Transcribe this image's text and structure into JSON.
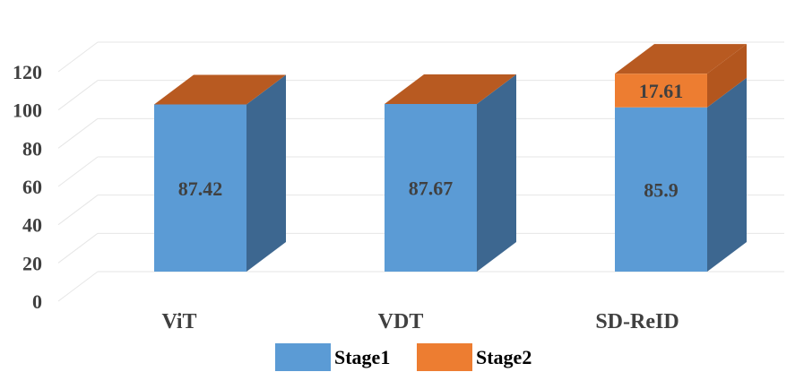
{
  "chart_data": {
    "type": "bar",
    "stacked": true,
    "style": "3d",
    "categories": [
      "ViT",
      "VDT",
      "SD-ReID"
    ],
    "series": [
      {
        "name": "Stage1",
        "values": [
          87.42,
          87.67,
          85.9
        ],
        "color": "#5b9bd5",
        "side_color": "#3d6790",
        "value_labels": [
          "87.42",
          "87.67",
          "85.9"
        ]
      },
      {
        "name": "Stage2",
        "values": [
          0,
          0,
          17.61
        ],
        "color": "#ed7d31",
        "side_color": "#b3561e",
        "value_labels": [
          "",
          "",
          "17.61"
        ]
      }
    ],
    "ylim": [
      0,
      120
    ],
    "yticks": [
      "0",
      "20",
      "40",
      "60",
      "80",
      "100",
      "120"
    ],
    "grid": true,
    "legend": "bottom",
    "top_face_color": "#b85a21"
  }
}
